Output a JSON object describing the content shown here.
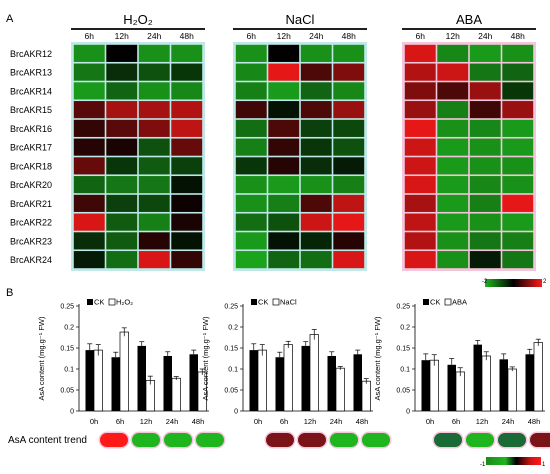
{
  "panel_a_label": "A",
  "panel_b_label": "B",
  "trend_label": "AsA content trend",
  "color_scale_a": {
    "min_label": "-2",
    "max_label": "2"
  },
  "color_scale_b": {
    "min_label": "-1",
    "max_label": "1"
  },
  "colors": {
    "up": "#ff1a1a",
    "down": "#1fb51f",
    "neutral": "#000000",
    "ck_bar": "#000000",
    "treat_bar": "#ffffff"
  },
  "chart_data": [
    {
      "type": "heatmap",
      "panel": "A",
      "genes": [
        "BrcAKR12",
        "BrcAKR13",
        "BrcAKR14",
        "BrcAKR15",
        "BrcAKR16",
        "BrcAKR17",
        "BrcAKR18",
        "BrcAKR20",
        "BrcAKR21",
        "BrcAKR22",
        "BrcAKR23",
        "BrcAKR24"
      ],
      "time_points": [
        "6h",
        "12h",
        "24h",
        "48h"
      ],
      "value_range": [
        -2,
        2
      ],
      "treatments": [
        {
          "name": "H₂O₂",
          "values": [
            [
              -1.6,
              0.0,
              -1.6,
              -1.6
            ],
            [
              -1.3,
              -0.5,
              -0.9,
              -0.6
            ],
            [
              -1.7,
              -1.1,
              -1.6,
              -1.5
            ],
            [
              0.7,
              1.3,
              1.3,
              1.4
            ],
            [
              0.4,
              0.7,
              1.0,
              1.5
            ],
            [
              0.3,
              0.2,
              -0.9,
              0.8
            ],
            [
              0.8,
              -0.6,
              -1.0,
              -0.7
            ],
            [
              -1.1,
              -1.3,
              -1.3,
              -0.2
            ],
            [
              0.5,
              -0.7,
              -0.8,
              0.1
            ],
            [
              1.7,
              -1.0,
              -1.4,
              0.2
            ],
            [
              -0.5,
              -1.0,
              0.3,
              -0.2
            ],
            [
              -0.3,
              -1.2,
              1.7,
              0.4
            ]
          ]
        },
        {
          "name": "NaCl",
          "values": [
            [
              -1.6,
              0.0,
              -1.6,
              -1.6
            ],
            [
              -1.5,
              1.8,
              0.6,
              1.0
            ],
            [
              -1.4,
              -1.7,
              -1.1,
              -1.5
            ],
            [
              0.5,
              -0.2,
              0.6,
              1.2
            ],
            [
              -1.2,
              0.6,
              -0.7,
              -0.8
            ],
            [
              -1.4,
              0.4,
              -0.6,
              -0.9
            ],
            [
              -0.6,
              0.3,
              -0.5,
              -0.3
            ],
            [
              -1.6,
              -1.7,
              -1.6,
              -1.4
            ],
            [
              -1.6,
              -1.4,
              0.6,
              1.5
            ],
            [
              -1.2,
              -0.9,
              1.6,
              1.8
            ],
            [
              -1.7,
              -0.2,
              -0.4,
              0.3
            ],
            [
              -1.8,
              -1.1,
              -1.2,
              1.7
            ]
          ]
        },
        {
          "name": "ABA",
          "values": [
            [
              1.7,
              -1.5,
              -1.7,
              -1.6
            ],
            [
              1.4,
              1.6,
              -1.3,
              -1.1
            ],
            [
              1.0,
              0.6,
              1.2,
              -0.6
            ],
            [
              1.2,
              -1.4,
              0.5,
              1.2
            ],
            [
              1.8,
              -1.6,
              -1.5,
              -1.7
            ],
            [
              1.6,
              -1.7,
              -1.6,
              -1.7
            ],
            [
              1.6,
              -1.7,
              -1.6,
              -1.6
            ],
            [
              1.7,
              -1.7,
              -1.5,
              -1.6
            ],
            [
              1.3,
              -1.7,
              -1.4,
              1.8
            ],
            [
              1.5,
              -1.7,
              -1.6,
              -1.7
            ],
            [
              1.4,
              -1.6,
              -1.3,
              -1.4
            ],
            [
              1.7,
              -1.6,
              -0.3,
              -1.3
            ]
          ]
        }
      ]
    },
    {
      "type": "bar",
      "panel": "B",
      "ylabel": "AsA content (mg.g⁻¹ FW)",
      "ylim": [
        0,
        0.25
      ],
      "y_ticks": [
        "0",
        "0.05",
        "0.1",
        "0.15",
        "0.2",
        "0.25"
      ],
      "categories": [
        "0h",
        "6h",
        "12h",
        "24h",
        "48h"
      ],
      "charts": [
        {
          "legend_ck": "CK",
          "legend_treat": "H₂O₂",
          "ck": [
            0.145,
            0.128,
            0.155,
            0.131,
            0.135
          ],
          "ck_err": [
            0.015,
            0.012,
            0.01,
            0.01,
            0.01
          ],
          "treat": [
            0.145,
            0.188,
            0.073,
            0.078,
            0.093
          ],
          "treat_err": [
            0.013,
            0.01,
            0.01,
            0.004,
            0.007
          ],
          "trend": [
            "up",
            "down",
            "down",
            "down"
          ]
        },
        {
          "legend_ck": "CK",
          "legend_treat": "NaCl",
          "ck": [
            0.145,
            0.128,
            0.155,
            0.131,
            0.135
          ],
          "ck_err": [
            0.015,
            0.012,
            0.01,
            0.01,
            0.01
          ],
          "treat": [
            0.145,
            0.158,
            0.182,
            0.102,
            0.071
          ],
          "treat_err": [
            0.013,
            0.008,
            0.012,
            0.004,
            0.006
          ],
          "trend": [
            "neutral_up",
            "neutral_up",
            "down",
            "down"
          ]
        },
        {
          "legend_ck": "CK",
          "legend_treat": "ABA",
          "ck": [
            0.121,
            0.11,
            0.158,
            0.123,
            0.135
          ],
          "ck_err": [
            0.015,
            0.015,
            0.01,
            0.013,
            0.012
          ],
          "treat": [
            0.121,
            0.093,
            0.131,
            0.1,
            0.163
          ],
          "treat_err": [
            0.013,
            0.01,
            0.01,
            0.005,
            0.008
          ],
          "trend": [
            "neutral_down",
            "down",
            "neutral_down",
            "neutral_up"
          ]
        }
      ]
    }
  ]
}
